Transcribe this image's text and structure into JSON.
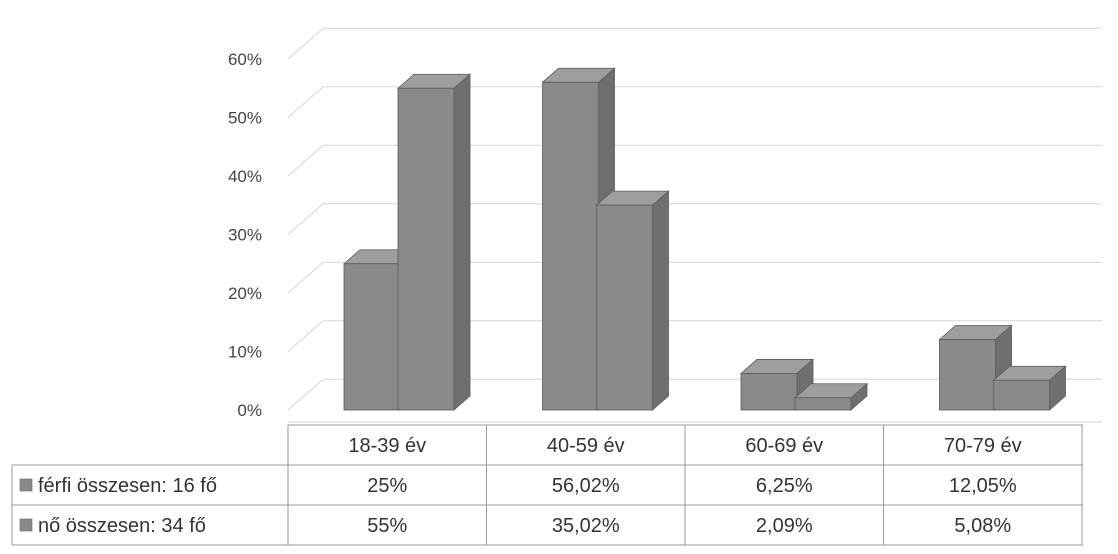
{
  "chart_data": {
    "type": "bar",
    "categories": [
      "18-39 év",
      "40-59 év",
      "60-69 év",
      "70-79 év"
    ],
    "series": [
      {
        "name": "férfi összesen: 16 fő",
        "values": [
          25,
          56.02,
          6.25,
          12.05
        ],
        "labels": [
          "25%",
          "56,02%",
          "6,25%",
          "12,05%"
        ],
        "color": "#8a8a8a"
      },
      {
        "name": "nő összesen: 34 fő",
        "values": [
          55,
          35.02,
          2.09,
          5.08
        ],
        "labels": [
          "55%",
          "35,02%",
          "2,09%",
          "5,08%"
        ],
        "color": "#8a8a8a"
      }
    ],
    "y_ticks": [
      "0%",
      "10%",
      "20%",
      "30%",
      "40%",
      "50%",
      "60%"
    ],
    "ylim": [
      0,
      60
    ],
    "grid": true,
    "style": "3d-clustered-column-with-data-table"
  }
}
